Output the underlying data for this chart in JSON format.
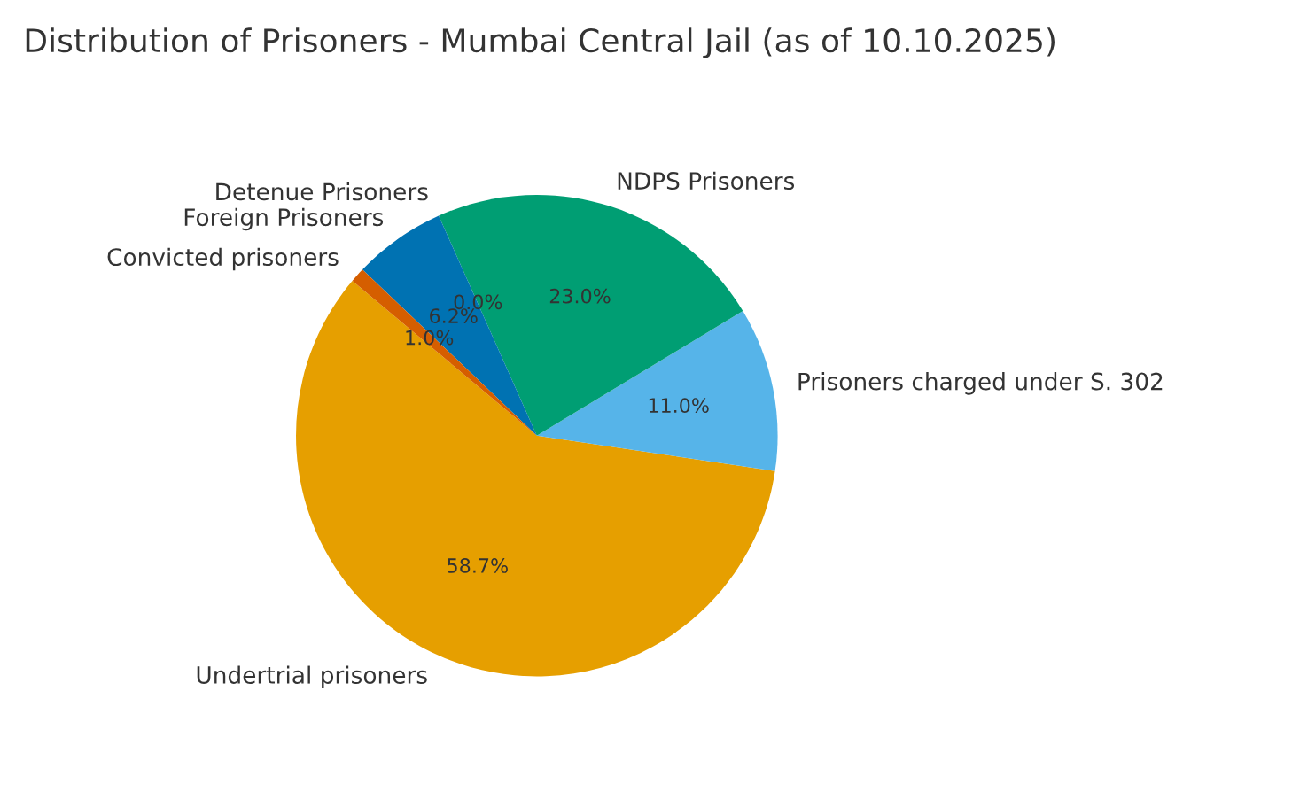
{
  "chart_data": {
    "type": "pie",
    "title": "Distribution of Prisoners - Mumbai Central Jail (as of 10.10.2025)",
    "categories": [
      "Undertrial prisoners",
      "Prisoners charged under S. 302",
      "NDPS Prisoners",
      "Detenue Prisoners",
      "Foreign Prisoners",
      "Convicted prisoners"
    ],
    "values": [
      58.7,
      11.0,
      23.0,
      0.0,
      6.2,
      1.0
    ],
    "colors": [
      "#e69f00",
      "#56b4e9",
      "#009e73",
      "#f0e442",
      "#0072b2",
      "#d55e00"
    ],
    "value_labels": [
      "58.7%",
      "11.0%",
      "23.0%",
      "0.0%",
      "6.2%",
      "1.0%"
    ],
    "legend": false
  }
}
